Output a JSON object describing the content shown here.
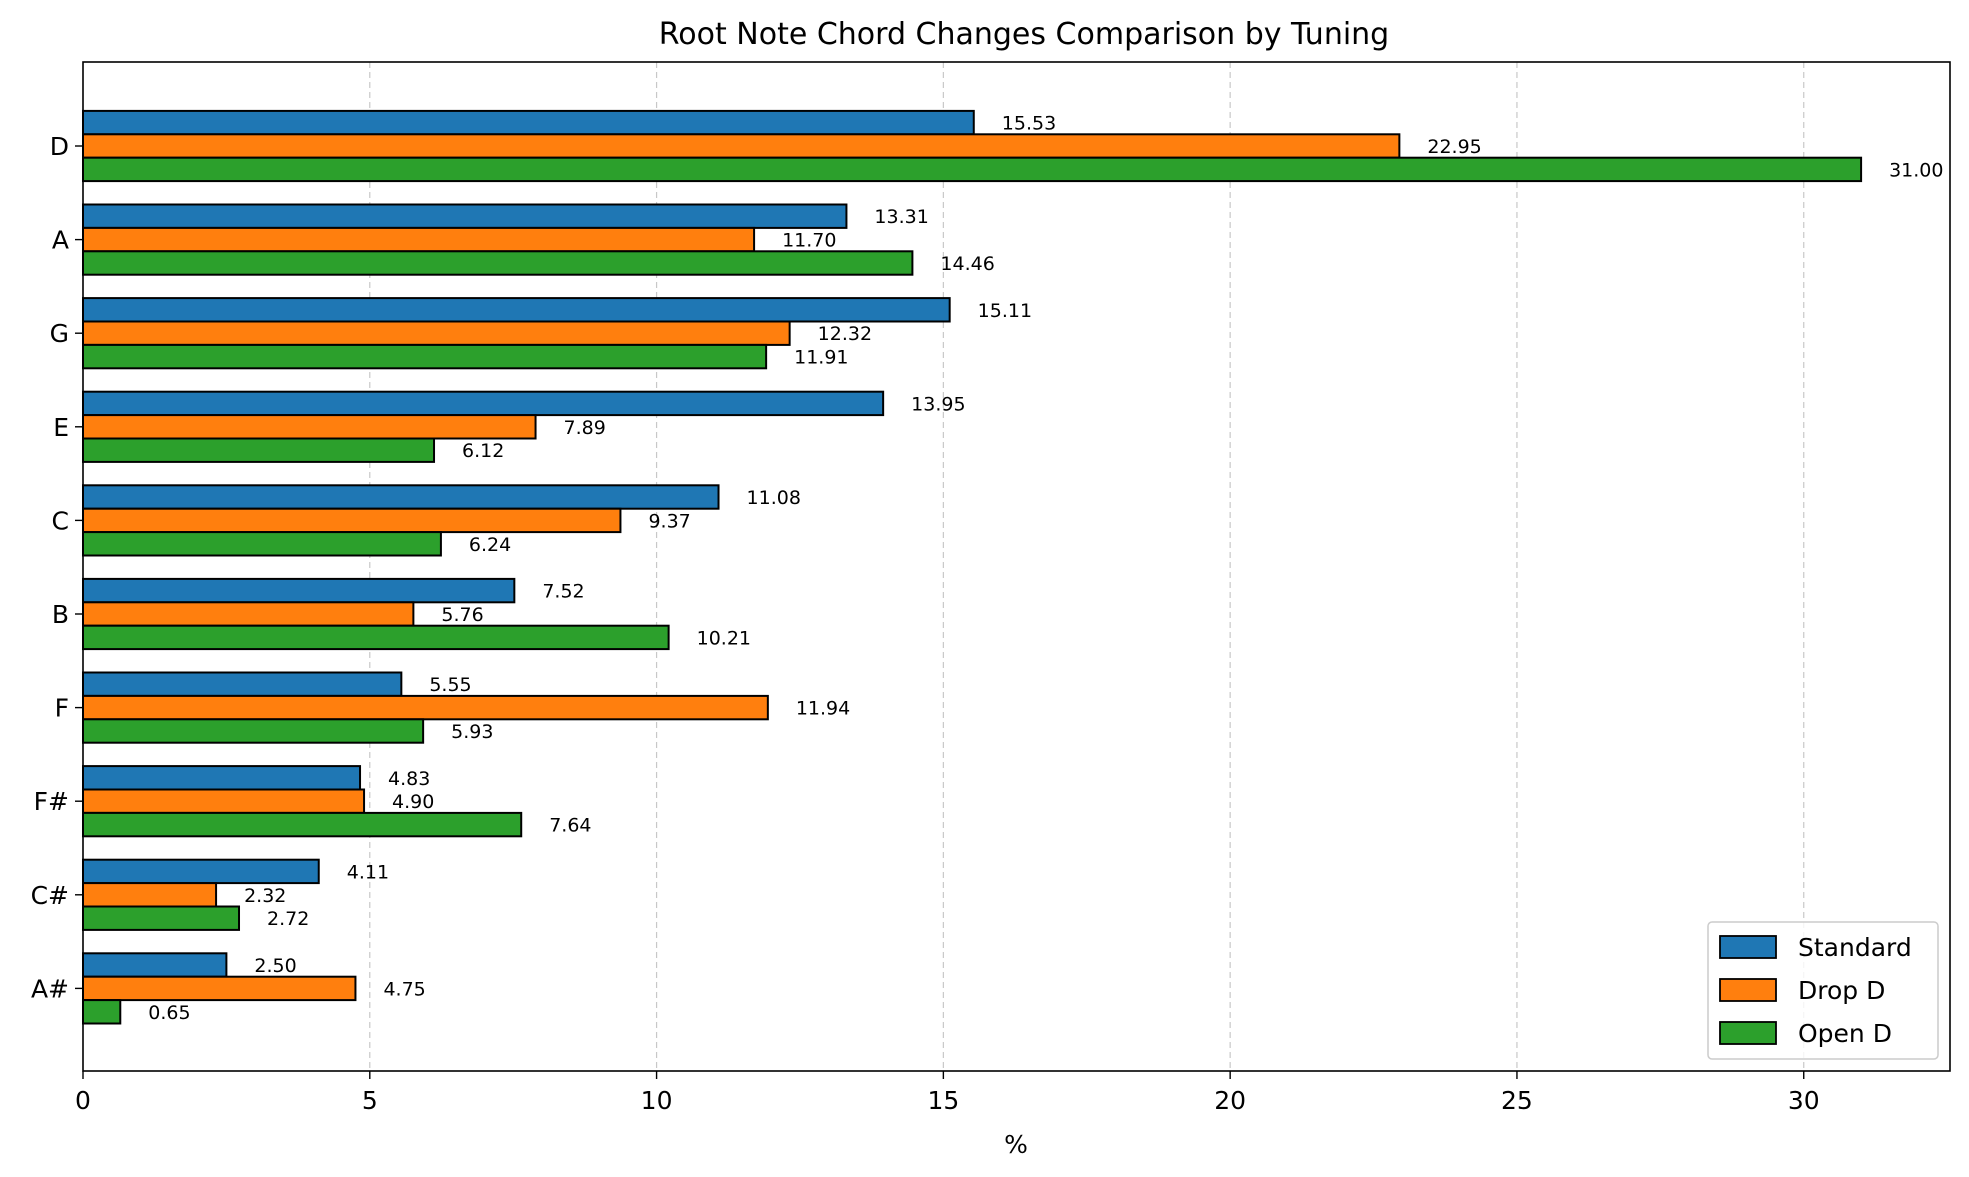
{
  "chart_data": {
    "type": "bar",
    "orientation": "horizontal",
    "title": "Root Note Chord Changes Comparison by Tuning",
    "xlabel": "%",
    "ylabel": "",
    "xlim": [
      0,
      32.55
    ],
    "xticks": [
      0,
      5,
      10,
      15,
      20,
      25,
      30
    ],
    "grid": "x-dashed",
    "legend_position": "lower-right",
    "categories": [
      "D",
      "A",
      "G",
      "E",
      "C",
      "B",
      "F",
      "F#",
      "C#",
      "A#"
    ],
    "series": [
      {
        "name": "Standard",
        "color": "#1f77b4",
        "values": [
          15.53,
          13.31,
          15.11,
          13.95,
          11.08,
          7.52,
          5.55,
          4.83,
          4.11,
          2.5
        ],
        "labels": [
          "15.53",
          "13.31",
          "15.11",
          "13.95",
          "11.08",
          "7.52",
          "5.55",
          "4.83",
          "4.11",
          "2.50"
        ]
      },
      {
        "name": "Drop D",
        "color": "#ff7f0e",
        "values": [
          22.95,
          11.7,
          12.32,
          7.89,
          9.37,
          5.76,
          11.94,
          4.9,
          2.32,
          4.75
        ],
        "labels": [
          "22.95",
          "11.70",
          "12.32",
          "7.89",
          "9.37",
          "5.76",
          "11.94",
          "4.90",
          "2.32",
          "4.75"
        ]
      },
      {
        "name": "Open D",
        "color": "#2ca02c",
        "values": [
          31.0,
          14.46,
          11.91,
          6.12,
          6.24,
          10.21,
          5.93,
          7.64,
          2.72,
          0.65
        ],
        "labels": [
          "31.00",
          "14.46",
          "11.91",
          "6.12",
          "6.24",
          "10.21",
          "5.93",
          "7.64",
          "2.72",
          "0.65"
        ]
      }
    ]
  }
}
